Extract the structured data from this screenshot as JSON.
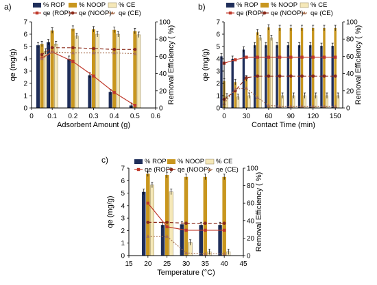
{
  "figure": {
    "panels": [
      "a)",
      "b)",
      "c)"
    ]
  },
  "colors": {
    "rop": "#1f2e5a",
    "noop": "#c8961e",
    "ce": "#f5e8b8",
    "qe_rop": "#c0392b",
    "qe_noop": "#8b2a1a",
    "qe_ce": "#a87050"
  },
  "chart_data": [
    {
      "panel": "a)",
      "type": "bar",
      "overlay": "line",
      "xlabel": "Adsorbent Amount (g)",
      "ylabel": "qe (mg/g)",
      "y2label": "Removal Efficiency ( %)",
      "xlim": [
        0,
        0.6
      ],
      "xticks": [
        "0",
        "0.1",
        "0.2",
        "0.3",
        "0.4",
        "0.5",
        "0.6"
      ],
      "ylim": [
        0,
        7
      ],
      "yticks": [
        "0",
        "1",
        "2",
        "3",
        "4",
        "5",
        "6",
        "7"
      ],
      "y2lim": [
        0,
        100
      ],
      "y2ticks": [
        "0",
        "20",
        "40",
        "60",
        "80",
        "100"
      ],
      "x": [
        0.05,
        0.1,
        0.2,
        0.3,
        0.4,
        0.5
      ],
      "bars": [
        {
          "name": "% ROP",
          "values": [
            5.1,
            5.35,
            4.0,
            2.65,
            1.3,
            0.2
          ]
        },
        {
          "name": "% NOOP",
          "values": [
            5.2,
            6.3,
            6.45,
            6.4,
            6.35,
            6.25
          ]
        },
        {
          "name": "% CE",
          "values": [
            4.6,
            5.2,
            5.85,
            6.0,
            6.0,
            5.95
          ]
        }
      ],
      "lines": [
        {
          "name": "qe (ROP)",
          "values": [
            58,
            65,
            54,
            37,
            18,
            3
          ]
        },
        {
          "name": "qe (NOOP)",
          "values": [
            62,
            70,
            70,
            69,
            68,
            68
          ]
        },
        {
          "name": "qe (CE)",
          "values": [
            57,
            65,
            64,
            64,
            64,
            63
          ]
        }
      ]
    },
    {
      "panel": "b)",
      "type": "bar",
      "overlay": "line",
      "xlabel": "Contact Time (min)",
      "ylabel": "qe (mg/g)",
      "y2label": "Removal Efficiency ( %)",
      "xlim": [
        0,
        160
      ],
      "xticks": [
        "0",
        "30",
        "60",
        "90",
        "120",
        "150"
      ],
      "ylim": [
        0,
        7
      ],
      "yticks": [
        "0",
        "1",
        "2",
        "3",
        "4",
        "5",
        "6",
        "7"
      ],
      "y2lim": [
        0,
        100
      ],
      "y2ticks": [
        "0",
        "20",
        "40",
        "60",
        "80",
        "100"
      ],
      "x": [
        0,
        15,
        30,
        45,
        60,
        75,
        90,
        105,
        120,
        135,
        150
      ],
      "bars": [
        {
          "name": "% ROP",
          "values": [
            4.2,
            4.0,
            4.75,
            5.1,
            5.1,
            5.1,
            5.1,
            5.1,
            5.1,
            5.05,
            5.05
          ]
        },
        {
          "name": "% NOOP",
          "values": [
            2.2,
            2.1,
            2.4,
            6.15,
            6.55,
            6.5,
            6.5,
            6.5,
            6.5,
            6.5,
            6.5
          ]
        },
        {
          "name": "% CE",
          "values": [
            0.95,
            0.9,
            1.0,
            5.7,
            5.7,
            1.0,
            1.0,
            1.0,
            1.0,
            1.0,
            1.0
          ]
        }
      ],
      "lines": [
        {
          "name": "qe (ROP)",
          "values": [
            52,
            56,
            59,
            59,
            59,
            59,
            59,
            59,
            59,
            59,
            59
          ]
        },
        {
          "name": "qe (NOOP)",
          "values": [
            10,
            20,
            35,
            37,
            37,
            37,
            37,
            37,
            37,
            37,
            37
          ]
        },
        {
          "name": "qe (CE)",
          "values": [
            5,
            22,
            23,
            12,
            3,
            2,
            2,
            2,
            2,
            2,
            2
          ]
        }
      ]
    },
    {
      "panel": "c)",
      "type": "bar",
      "overlay": "line",
      "xlabel": "Temperature (°C)",
      "ylabel": "qe (mg/g)",
      "y2label": "Removal Efficiency ( %)",
      "xlim": [
        15,
        45
      ],
      "xticks": [
        "15",
        "20",
        "25",
        "30",
        "35",
        "40",
        "45"
      ],
      "ylim": [
        0,
        7
      ],
      "yticks": [
        "0",
        "1",
        "2",
        "3",
        "4",
        "5",
        "6",
        "7"
      ],
      "y2lim": [
        0,
        100
      ],
      "y2ticks": [
        "0",
        "20",
        "40",
        "60",
        "80",
        "100"
      ],
      "x": [
        20,
        25,
        30,
        35,
        40
      ],
      "bars": [
        {
          "name": "% ROP",
          "values": [
            5.1,
            2.45,
            2.5,
            2.45,
            2.45
          ]
        },
        {
          "name": "% NOOP",
          "values": [
            6.55,
            6.45,
            6.3,
            6.3,
            6.3
          ]
        },
        {
          "name": "% CE",
          "values": [
            5.65,
            5.1,
            1.05,
            0.3,
            0.3
          ]
        }
      ],
      "lines": [
        {
          "name": "qe (ROP)",
          "values": [
            60,
            33,
            29,
            29,
            29
          ]
        },
        {
          "name": "qe (NOOP)",
          "values": [
            38,
            38,
            37,
            37,
            37
          ]
        },
        {
          "name": "qe (CE)",
          "values": [
            22,
            22,
            3,
            2,
            2
          ]
        }
      ]
    }
  ]
}
